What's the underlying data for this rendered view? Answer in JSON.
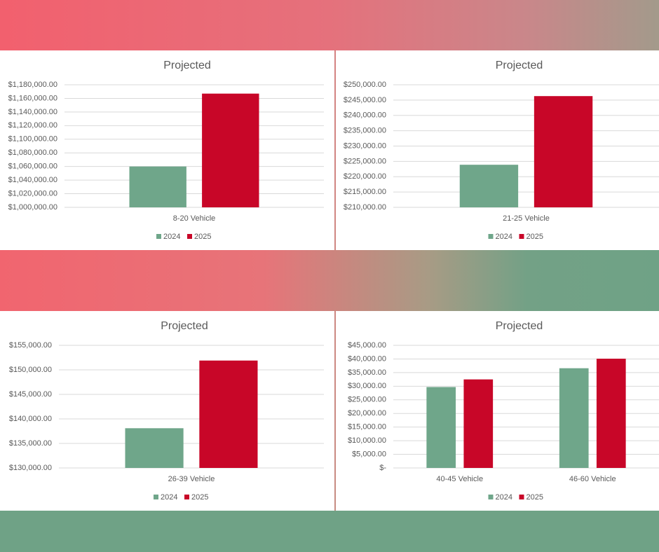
{
  "chart_data": [
    {
      "type": "bar",
      "title": "Projected",
      "categories": [
        "8-20 Vehicle"
      ],
      "series": [
        {
          "name": "2024",
          "color": "#6fa68a",
          "values": [
            1060000
          ]
        },
        {
          "name": "2025",
          "color": "#c80628",
          "values": [
            1167000
          ]
        }
      ],
      "ylim": [
        1000000,
        1180000
      ],
      "yticks": [
        {
          "value": 1000000,
          "label": "$1,000,000.00"
        },
        {
          "value": 1020000,
          "label": "$1,020,000.00"
        },
        {
          "value": 1040000,
          "label": "$1,040,000.00"
        },
        {
          "value": 1060000,
          "label": "$1,060,000.00"
        },
        {
          "value": 1080000,
          "label": "$1,080,000.00"
        },
        {
          "value": 1100000,
          "label": "$1,100,000.00"
        },
        {
          "value": 1120000,
          "label": "$1,120,000.00"
        },
        {
          "value": 1140000,
          "label": "$1,140,000.00"
        },
        {
          "value": 1160000,
          "label": "$1,160,000.00"
        },
        {
          "value": 1180000,
          "label": "$1,180,000.00"
        }
      ],
      "grid": true,
      "legend": "bottom"
    },
    {
      "type": "bar",
      "title": "Projected",
      "categories": [
        "21-25 Vehicle"
      ],
      "series": [
        {
          "name": "2024",
          "color": "#6fa68a",
          "values": [
            223900
          ]
        },
        {
          "name": "2025",
          "color": "#c80628",
          "values": [
            246300
          ]
        }
      ],
      "ylim": [
        210000,
        250000
      ],
      "yticks": [
        {
          "value": 210000,
          "label": "$210,000.00"
        },
        {
          "value": 215000,
          "label": "$215,000.00"
        },
        {
          "value": 220000,
          "label": "$220,000.00"
        },
        {
          "value": 225000,
          "label": "$225,000.00"
        },
        {
          "value": 230000,
          "label": "$230,000.00"
        },
        {
          "value": 235000,
          "label": "$235,000.00"
        },
        {
          "value": 240000,
          "label": "$240,000.00"
        },
        {
          "value": 245000,
          "label": "$245,000.00"
        },
        {
          "value": 250000,
          "label": "$250,000.00"
        }
      ],
      "grid": true,
      "legend": "bottom"
    },
    {
      "type": "bar",
      "title": "Projected",
      "categories": [
        "26-39 Vehicle"
      ],
      "series": [
        {
          "name": "2024",
          "color": "#6fa68a",
          "values": [
            138100
          ]
        },
        {
          "name": "2025",
          "color": "#c80628",
          "values": [
            151900
          ]
        }
      ],
      "ylim": [
        130000,
        155000
      ],
      "yticks": [
        {
          "value": 130000,
          "label": "$130,000.00"
        },
        {
          "value": 135000,
          "label": "$135,000.00"
        },
        {
          "value": 140000,
          "label": "$140,000.00"
        },
        {
          "value": 145000,
          "label": "$145,000.00"
        },
        {
          "value": 150000,
          "label": "$150,000.00"
        },
        {
          "value": 155000,
          "label": "$155,000.00"
        }
      ],
      "grid": true,
      "legend": "bottom"
    },
    {
      "type": "bar",
      "title": "Projected",
      "categories": [
        "40-45 Vehicle",
        "46-60 Vehicle"
      ],
      "series": [
        {
          "name": "2024",
          "color": "#6fa68a",
          "values": [
            29700,
            36600
          ]
        },
        {
          "name": "2025",
          "color": "#c80628",
          "values": [
            32500,
            40100
          ]
        }
      ],
      "ylim": [
        0,
        45000
      ],
      "yticks": [
        {
          "value": 0,
          "label": "$-"
        },
        {
          "value": 5000,
          "label": "$5,000.00"
        },
        {
          "value": 10000,
          "label": "$10,000.00"
        },
        {
          "value": 15000,
          "label": "$15,000.00"
        },
        {
          "value": 20000,
          "label": "$20,000.00"
        },
        {
          "value": 25000,
          "label": "$25,000.00"
        },
        {
          "value": 30000,
          "label": "$30,000.00"
        },
        {
          "value": 35000,
          "label": "$35,000.00"
        },
        {
          "value": 40000,
          "label": "$40,000.00"
        },
        {
          "value": 45000,
          "label": "$45,000.00"
        }
      ],
      "grid": true,
      "legend": "bottom"
    }
  ]
}
